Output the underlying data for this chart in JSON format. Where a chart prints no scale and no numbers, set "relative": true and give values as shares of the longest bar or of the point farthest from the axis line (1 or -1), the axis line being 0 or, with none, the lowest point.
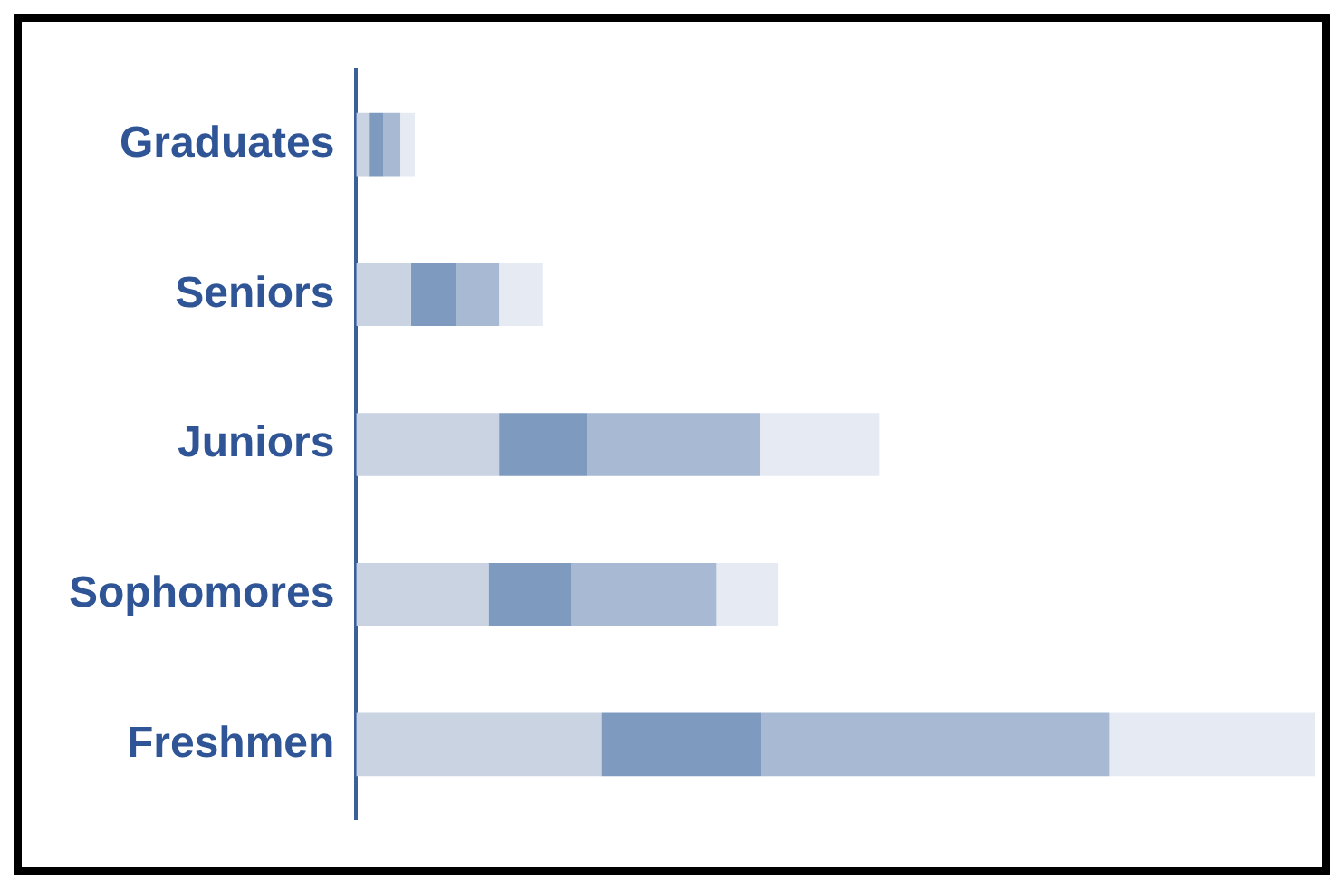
{
  "chart_data": {
    "type": "bar",
    "orientation": "horizontal",
    "stacked": true,
    "relative": true,
    "legend": false,
    "categories": [
      "Graduates",
      "Seniors",
      "Juniors",
      "Sophomores",
      "Freshmen"
    ],
    "series": [
      {
        "color": "#c9d3e2",
        "values": [
          0.013,
          0.057,
          0.149,
          0.138,
          0.256
        ]
      },
      {
        "color": "#7e9bbf",
        "values": [
          0.015,
          0.048,
          0.092,
          0.087,
          0.166
        ]
      },
      {
        "color": "#a7b9d3",
        "values": [
          0.018,
          0.044,
          0.18,
          0.151,
          0.364
        ]
      },
      {
        "color": "#e6ebf3",
        "values": [
          0.015,
          0.046,
          0.125,
          0.064,
          0.214
        ]
      }
    ]
  }
}
